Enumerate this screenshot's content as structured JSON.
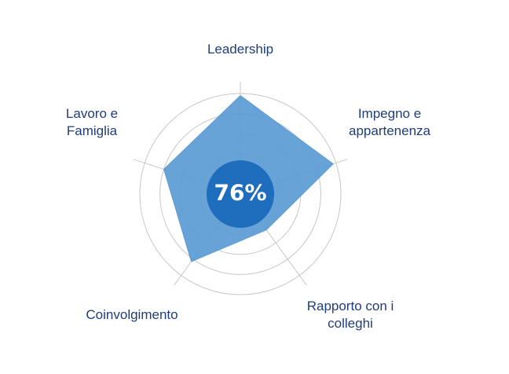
{
  "chart_data": {
    "type": "radar",
    "axes": [
      "Leadership",
      "Impegno e\nappartenenza",
      "Rapporto con i\ncolleghi",
      "Coinvolgimento",
      "Lavoro e\nFamiglia"
    ],
    "values": [
      98,
      97,
      44,
      83,
      80
    ],
    "rmax": 100,
    "rings": 5,
    "center_value": "76%",
    "grid": true,
    "colors": {
      "fill": "#5b9bd5",
      "center": "#1f6dbd",
      "grid": "#c8c8c8",
      "label": "#1f3d7a"
    }
  }
}
